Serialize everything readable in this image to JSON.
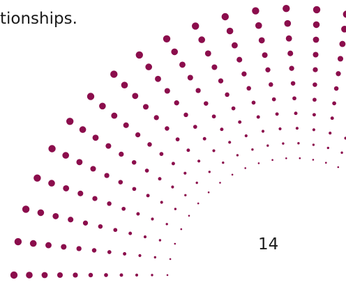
{
  "body_text": "tionships.",
  "page_number": "14"
}
